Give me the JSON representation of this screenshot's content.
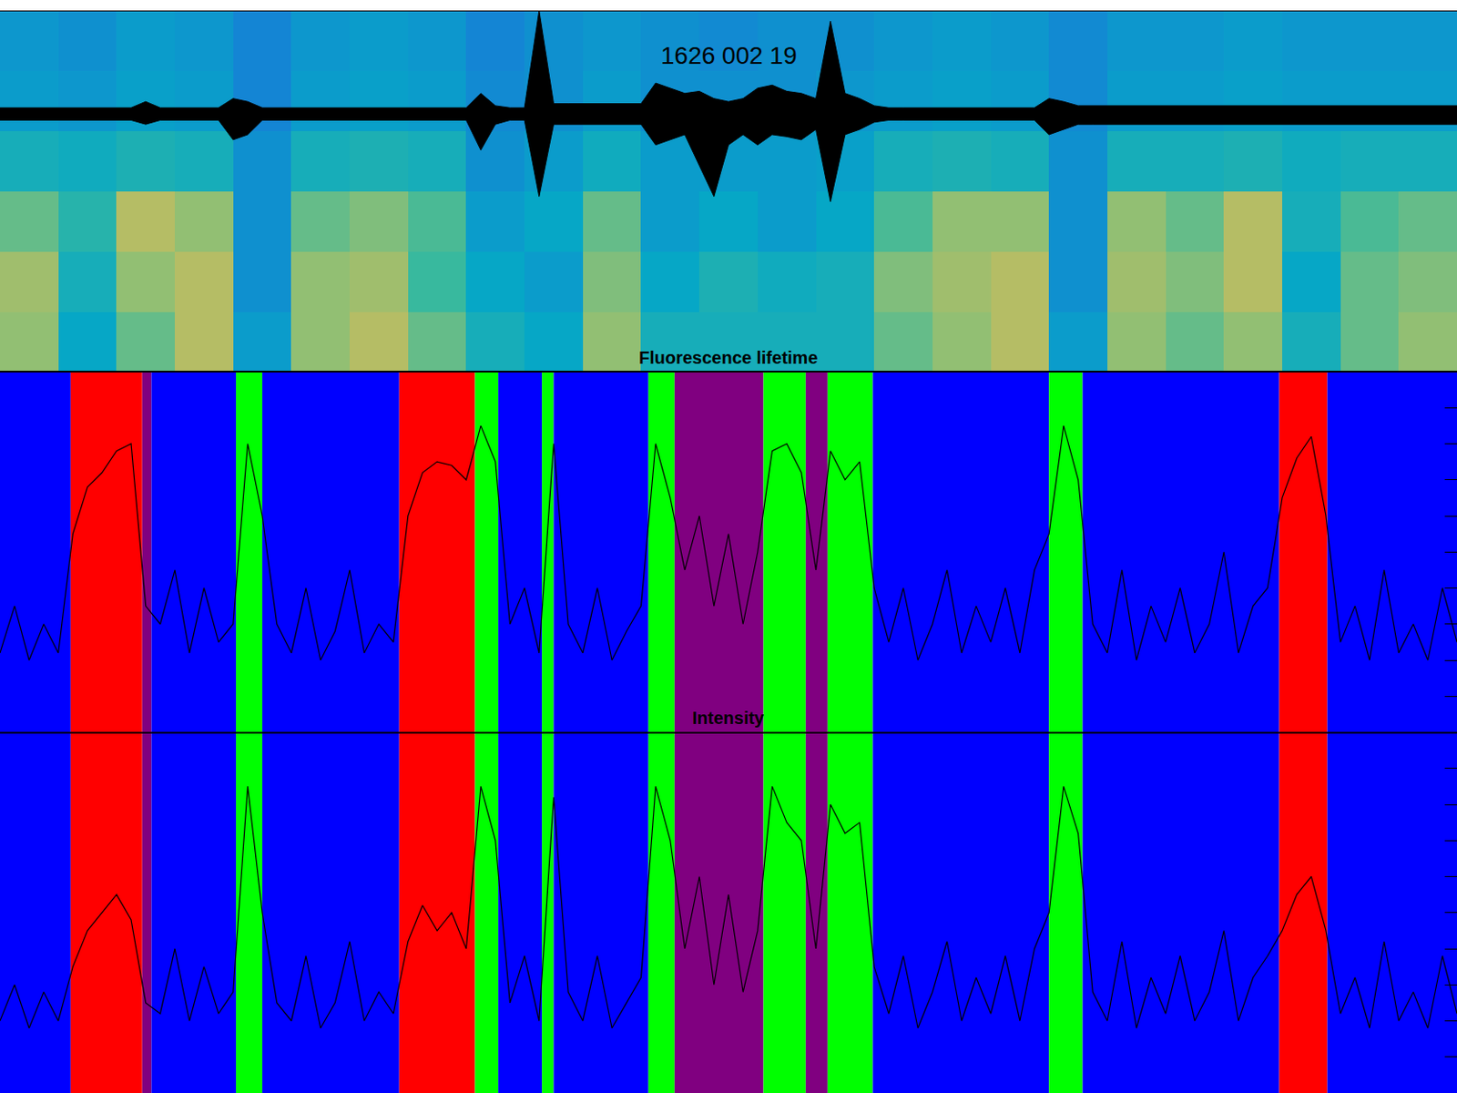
{
  "chart_data": {
    "type": "multi_panel",
    "title": "1626 002 19",
    "tick_labels": false,
    "grid": false,
    "xlim": [
      0,
      100
    ],
    "x": [
      0,
      1,
      2,
      3,
      4,
      5,
      6,
      7,
      8,
      9,
      10,
      11,
      12,
      13,
      14,
      15,
      16,
      17,
      18,
      19,
      20,
      21,
      22,
      23,
      24,
      25,
      26,
      27,
      28,
      29,
      30,
      31,
      32,
      33,
      34,
      35,
      36,
      37,
      38,
      39,
      40,
      41,
      42,
      43,
      44,
      45,
      46,
      47,
      48,
      49,
      50,
      51,
      52,
      53,
      54,
      55,
      56,
      57,
      58,
      59,
      60,
      61,
      62,
      63,
      64,
      65,
      66,
      67,
      68,
      69,
      70,
      71,
      72,
      73,
      74,
      75,
      76,
      77,
      78,
      79,
      80,
      81,
      82,
      83,
      84,
      85,
      86,
      87,
      88,
      89,
      90,
      91,
      92,
      93,
      94,
      95,
      96,
      97,
      98,
      99,
      100
    ],
    "spectrogram": {
      "type": "heatmap",
      "zlim": [
        0,
        1
      ],
      "x": [
        2,
        6,
        10,
        14,
        18,
        22,
        26,
        30,
        34,
        38,
        42,
        46,
        50,
        54,
        58,
        62,
        66,
        70,
        74,
        78,
        82,
        86,
        90,
        94,
        98
      ],
      "z": [
        [
          0.8,
          0.55,
          0.75,
          0.85,
          0.5,
          0.8,
          0.85,
          0.75,
          0.6,
          0.55,
          0.8,
          0.6,
          0.6,
          0.6,
          0.6,
          0.75,
          0.8,
          0.85,
          0.5,
          0.8,
          0.75,
          0.8,
          0.6,
          0.75,
          0.8
        ],
        [
          0.82,
          0.6,
          0.8,
          0.85,
          0.45,
          0.8,
          0.82,
          0.7,
          0.55,
          0.5,
          0.78,
          0.55,
          0.62,
          0.58,
          0.6,
          0.78,
          0.82,
          0.85,
          0.45,
          0.82,
          0.78,
          0.85,
          0.55,
          0.75,
          0.78
        ],
        [
          0.75,
          0.65,
          0.85,
          0.8,
          0.45,
          0.75,
          0.78,
          0.72,
          0.5,
          0.55,
          0.75,
          0.5,
          0.55,
          0.5,
          0.55,
          0.72,
          0.8,
          0.8,
          0.45,
          0.8,
          0.75,
          0.85,
          0.6,
          0.72,
          0.75
        ],
        [
          0.6,
          0.58,
          0.62,
          0.6,
          0.45,
          0.6,
          0.62,
          0.6,
          0.45,
          0.5,
          0.58,
          0.5,
          0.5,
          0.5,
          0.52,
          0.6,
          0.62,
          0.6,
          0.45,
          0.6,
          0.6,
          0.62,
          0.58,
          0.6,
          0.6
        ],
        [
          0.5,
          0.48,
          0.52,
          0.5,
          0.4,
          0.5,
          0.52,
          0.5,
          0.42,
          0.45,
          0.5,
          0.45,
          0.45,
          0.45,
          0.48,
          0.5,
          0.52,
          0.5,
          0.42,
          0.5,
          0.5,
          0.52,
          0.5,
          0.5,
          0.5
        ],
        [
          0.48,
          0.45,
          0.5,
          0.48,
          0.4,
          0.48,
          0.5,
          0.48,
          0.4,
          0.45,
          0.48,
          0.45,
          0.42,
          0.45,
          0.45,
          0.48,
          0.5,
          0.48,
          0.42,
          0.48,
          0.48,
          0.5,
          0.48,
          0.48,
          0.48
        ]
      ]
    },
    "eeg": {
      "type": "line",
      "color": "#000000",
      "ylim": [
        -2.5,
        1
      ],
      "upper": [
        0.06,
        0.06,
        0.06,
        0.06,
        0.06,
        0.06,
        0.06,
        0.06,
        0.06,
        0.06,
        0.12,
        0.06,
        0.06,
        0.06,
        0.06,
        0.06,
        0.15,
        0.12,
        0.06,
        0.06,
        0.06,
        0.06,
        0.06,
        0.06,
        0.06,
        0.06,
        0.06,
        0.06,
        0.06,
        0.06,
        0.06,
        0.06,
        0.06,
        0.2,
        0.08,
        0.06,
        0.06,
        1.0,
        0.1,
        0.1,
        0.1,
        0.1,
        0.1,
        0.1,
        0.1,
        0.3,
        0.25,
        0.2,
        0.22,
        0.15,
        0.12,
        0.15,
        0.25,
        0.28,
        0.22,
        0.2,
        0.15,
        0.9,
        0.2,
        0.15,
        0.08,
        0.06,
        0.06,
        0.06,
        0.06,
        0.06,
        0.06,
        0.06,
        0.06,
        0.06,
        0.06,
        0.06,
        0.15,
        0.12,
        0.08,
        0.08,
        0.08,
        0.08,
        0.08,
        0.08,
        0.08,
        0.08,
        0.08,
        0.08,
        0.08,
        0.08,
        0.08,
        0.08,
        0.08,
        0.08,
        0.08,
        0.08,
        0.08,
        0.08,
        0.08,
        0.08,
        0.08,
        0.08,
        0.08,
        0.08,
        0.08
      ],
      "lower": [
        -0.06,
        -0.06,
        -0.06,
        -0.06,
        -0.06,
        -0.06,
        -0.06,
        -0.06,
        -0.06,
        -0.06,
        -0.1,
        -0.06,
        -0.06,
        -0.06,
        -0.06,
        -0.06,
        -0.25,
        -0.2,
        -0.06,
        -0.06,
        -0.06,
        -0.06,
        -0.06,
        -0.06,
        -0.06,
        -0.06,
        -0.06,
        -0.06,
        -0.06,
        -0.06,
        -0.06,
        -0.06,
        -0.06,
        -0.35,
        -0.1,
        -0.06,
        -0.06,
        -0.8,
        -0.1,
        -0.1,
        -0.1,
        -0.1,
        -0.1,
        -0.1,
        -0.1,
        -0.3,
        -0.25,
        -0.2,
        -0.5,
        -0.8,
        -0.3,
        -0.2,
        -0.3,
        -0.2,
        -0.22,
        -0.25,
        -0.15,
        -0.85,
        -0.2,
        -0.15,
        -0.08,
        -0.06,
        -0.06,
        -0.06,
        -0.06,
        -0.06,
        -0.06,
        -0.06,
        -0.06,
        -0.06,
        -0.06,
        -0.06,
        -0.2,
        -0.15,
        -0.1,
        -0.1,
        -0.1,
        -0.1,
        -0.1,
        -0.1,
        -0.1,
        -0.1,
        -0.1,
        -0.1,
        -0.1,
        -0.1,
        -0.1,
        -0.1,
        -0.1,
        -0.1,
        -0.1,
        -0.1,
        -0.1,
        -0.1,
        -0.1,
        -0.1,
        -0.1,
        -0.1,
        -0.1,
        -0.1,
        -0.1
      ]
    },
    "bands": [
      {
        "start": 0,
        "end": 4.85,
        "color": "#0000ff"
      },
      {
        "start": 4.85,
        "end": 9.76,
        "color": "#ff0000"
      },
      {
        "start": 9.76,
        "end": 10.4,
        "color": "#800080"
      },
      {
        "start": 10.4,
        "end": 16.2,
        "color": "#0000ff"
      },
      {
        "start": 16.2,
        "end": 18.0,
        "color": "#00ff00"
      },
      {
        "start": 18.0,
        "end": 27.4,
        "color": "#0000ff"
      },
      {
        "start": 27.4,
        "end": 32.6,
        "color": "#ff0000"
      },
      {
        "start": 32.6,
        "end": 34.2,
        "color": "#00ff00"
      },
      {
        "start": 34.2,
        "end": 37.2,
        "color": "#0000ff"
      },
      {
        "start": 37.2,
        "end": 38.0,
        "color": "#00ff00"
      },
      {
        "start": 38.0,
        "end": 44.5,
        "color": "#0000ff"
      },
      {
        "start": 44.5,
        "end": 46.3,
        "color": "#00ff00"
      },
      {
        "start": 46.3,
        "end": 52.4,
        "color": "#800080"
      },
      {
        "start": 52.4,
        "end": 55.3,
        "color": "#00ff00"
      },
      {
        "start": 55.3,
        "end": 56.8,
        "color": "#800080"
      },
      {
        "start": 56.8,
        "end": 59.9,
        "color": "#00ff00"
      },
      {
        "start": 59.9,
        "end": 72.0,
        "color": "#0000ff"
      },
      {
        "start": 72.0,
        "end": 74.3,
        "color": "#00ff00"
      },
      {
        "start": 74.3,
        "end": 87.8,
        "color": "#0000ff"
      },
      {
        "start": 87.8,
        "end": 91.1,
        "color": "#ff0000"
      },
      {
        "start": 91.1,
        "end": 100,
        "color": "#0000ff"
      }
    ],
    "panels": [
      {
        "title": "Fluorescence lifetime",
        "type": "line",
        "color": "#000000",
        "ylim": [
          0,
          1
        ],
        "yticks": [
          0.1,
          0.2,
          0.3,
          0.4,
          0.5,
          0.6,
          0.7,
          0.8,
          0.9
        ],
        "values": [
          0.22,
          0.35,
          0.2,
          0.3,
          0.22,
          0.55,
          0.68,
          0.72,
          0.78,
          0.8,
          0.35,
          0.3,
          0.45,
          0.22,
          0.4,
          0.25,
          0.3,
          0.8,
          0.6,
          0.3,
          0.22,
          0.4,
          0.2,
          0.28,
          0.45,
          0.22,
          0.3,
          0.25,
          0.6,
          0.72,
          0.75,
          0.74,
          0.7,
          0.85,
          0.75,
          0.3,
          0.4,
          0.22,
          0.8,
          0.3,
          0.22,
          0.4,
          0.2,
          0.28,
          0.35,
          0.8,
          0.65,
          0.45,
          0.6,
          0.35,
          0.55,
          0.3,
          0.5,
          0.78,
          0.8,
          0.72,
          0.45,
          0.78,
          0.7,
          0.75,
          0.4,
          0.25,
          0.4,
          0.2,
          0.3,
          0.45,
          0.22,
          0.35,
          0.25,
          0.4,
          0.22,
          0.45,
          0.55,
          0.85,
          0.7,
          0.3,
          0.22,
          0.45,
          0.2,
          0.35,
          0.25,
          0.4,
          0.22,
          0.3,
          0.5,
          0.22,
          0.35,
          0.4,
          0.65,
          0.76,
          0.82,
          0.6,
          0.25,
          0.35,
          0.2,
          0.45,
          0.22,
          0.3,
          0.2,
          0.4,
          0.25
        ]
      },
      {
        "title": "Intensity",
        "type": "line",
        "color": "#000000",
        "ylim": [
          0,
          1
        ],
        "yticks": [
          0.1,
          0.2,
          0.3,
          0.4,
          0.5,
          0.6,
          0.7,
          0.8,
          0.9
        ],
        "values": [
          0.2,
          0.3,
          0.18,
          0.28,
          0.2,
          0.35,
          0.45,
          0.5,
          0.55,
          0.48,
          0.25,
          0.22,
          0.4,
          0.2,
          0.35,
          0.22,
          0.28,
          0.85,
          0.5,
          0.25,
          0.2,
          0.38,
          0.18,
          0.25,
          0.42,
          0.2,
          0.28,
          0.22,
          0.42,
          0.52,
          0.45,
          0.5,
          0.4,
          0.85,
          0.7,
          0.25,
          0.38,
          0.2,
          0.82,
          0.28,
          0.2,
          0.38,
          0.18,
          0.25,
          0.32,
          0.85,
          0.7,
          0.4,
          0.6,
          0.3,
          0.55,
          0.28,
          0.45,
          0.85,
          0.75,
          0.7,
          0.4,
          0.8,
          0.72,
          0.75,
          0.35,
          0.22,
          0.38,
          0.18,
          0.28,
          0.42,
          0.2,
          0.32,
          0.22,
          0.38,
          0.2,
          0.4,
          0.5,
          0.85,
          0.72,
          0.28,
          0.2,
          0.42,
          0.18,
          0.32,
          0.22,
          0.38,
          0.2,
          0.28,
          0.45,
          0.2,
          0.32,
          0.38,
          0.45,
          0.55,
          0.6,
          0.45,
          0.22,
          0.32,
          0.18,
          0.42,
          0.2,
          0.28,
          0.18,
          0.38,
          0.22
        ]
      }
    ]
  }
}
